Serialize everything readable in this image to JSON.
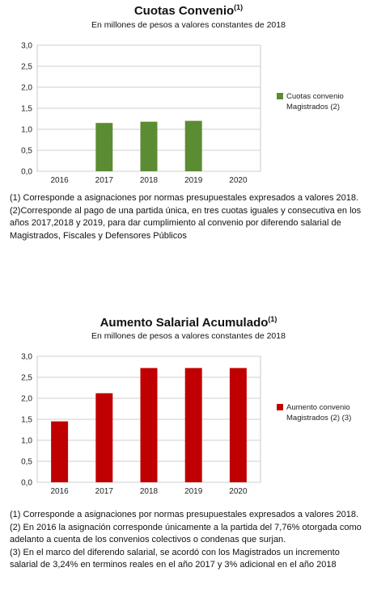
{
  "chart_data": [
    {
      "type": "bar",
      "title": "Cuotas Convenio",
      "title_sup": "(1)",
      "subtitle": "En millones de pesos a valores constantes de 2018",
      "categories": [
        "2016",
        "2017",
        "2018",
        "2019",
        "2020"
      ],
      "values": [
        null,
        1.15,
        1.18,
        1.2,
        null
      ],
      "ylim": [
        0,
        3
      ],
      "yticks": [
        "0,0",
        "0,5",
        "1,0",
        "1,5",
        "2,0",
        "2,5",
        "3,0"
      ],
      "grid": true,
      "legend_position": "right",
      "color": "#5b8c33",
      "series": [
        {
          "legend_line1": "Cuotas convenio",
          "legend_line2": "Magistrados (2)",
          "values": [
            null,
            1.15,
            1.18,
            1.2,
            null
          ]
        }
      ],
      "notes": [
        "(1) Corresponde a asignaciones por normas presupuestales expresados a valores 2018.",
        "(2)Corresponde al pago de una partida única, en tres cuotas iguales y consecutiva en los años 2017,2018  y 2019,  para dar cumplimiento al convenio por diferendo salarial de Magistrados, Fiscales y Defensores Públicos"
      ]
    },
    {
      "type": "bar",
      "title": "Aumento Salarial Acumulado",
      "title_sup": "(1)",
      "subtitle": "En millones de pesos a valores constantes de 2018",
      "categories": [
        "2016",
        "2017",
        "2018",
        "2019",
        "2020"
      ],
      "values": [
        1.45,
        2.12,
        2.72,
        2.72,
        2.72
      ],
      "ylim": [
        0,
        3
      ],
      "yticks": [
        "0,0",
        "0,5",
        "1,0",
        "1,5",
        "2,0",
        "2,5",
        "3,0"
      ],
      "grid": true,
      "legend_position": "right",
      "color": "#c00000",
      "series": [
        {
          "legend_line1": "Aumento convenio",
          "legend_line2": "Magistrados (2) (3)",
          "values": [
            1.45,
            2.12,
            2.72,
            2.72,
            2.72
          ]
        }
      ],
      "notes": [
        "(1) Corresponde a asignaciones por normas presupuestales expresados a valores 2018.",
        "(2) En 2016  la asignación corresponde únicamente a la partida del 7,76% otorgada como adelanto a cuenta de los convenios colectivos o condenas que surjan.",
        "(3) En el marco del diferendo salarial, se acordó con los Magistrados un incremento salarial de 3,24% en terminos reales en el año 2017 y 3% adicional en el año 2018"
      ]
    }
  ]
}
